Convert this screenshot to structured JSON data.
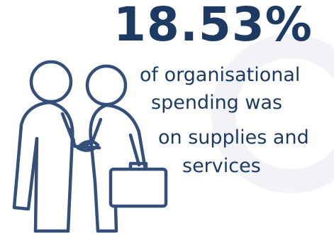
{
  "headline": {
    "value": "18.53%"
  },
  "body_lines": [
    "of organisational",
    "spending was",
    "on supplies and",
    "services"
  ],
  "illustration": {
    "icon": "handshake-icon",
    "stroke_color": "#34507a",
    "fill_color": "#ffffff"
  },
  "colors": {
    "text": "#1d3a63",
    "background": "#ffffff",
    "ring": "#f1f3f6"
  }
}
